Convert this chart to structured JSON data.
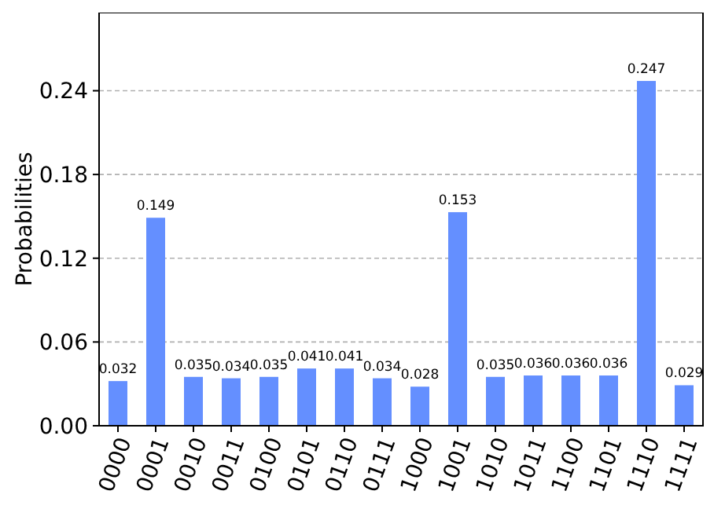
{
  "chart_data": {
    "type": "bar",
    "ylabel": "Probabilities",
    "categories": [
      "0000",
      "0001",
      "0010",
      "0011",
      "0100",
      "0101",
      "0110",
      "0111",
      "1000",
      "1001",
      "1010",
      "1011",
      "1100",
      "1101",
      "1110",
      "1111"
    ],
    "values": [
      0.032,
      0.149,
      0.035,
      0.034,
      0.035,
      0.041,
      0.041,
      0.034,
      0.028,
      0.153,
      0.035,
      0.036,
      0.036,
      0.036,
      0.247,
      0.029
    ],
    "color": "#648fff",
    "ylim": [
      0,
      0.296
    ],
    "yticks": [
      {
        "value": 0,
        "label": "0.00"
      },
      0.06,
      0.12,
      0.18,
      0.24
    ],
    "grid": "y",
    "data_labels": true
  }
}
